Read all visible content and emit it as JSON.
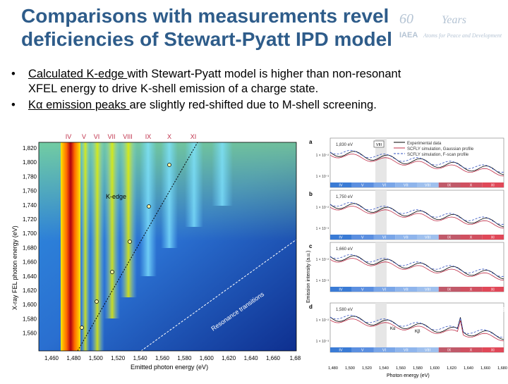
{
  "title": {
    "line1": "Comparisons with measurements revel",
    "line2": "deficiencies of Stewart-Pyatt IPD model"
  },
  "logo": {
    "sixty": "60",
    "years": "Years",
    "iaea": "IAEA",
    "sub": "Atoms for Peace and Development"
  },
  "bullets": [
    {
      "u": "Calculated K-edge ",
      "rest": "with Stewart-Pyatt model is higher than non-resonant",
      "line2": "XFEL energy to drive K-shell emission of a charge state."
    },
    {
      "u": "Kα emission peaks ",
      "rest": "are slightly red-shifted due to M-shell screening."
    }
  ],
  "left_figure": {
    "roman": [
      "IV",
      "V",
      "VI",
      "VII",
      "VIII",
      "IX",
      "X",
      "XI"
    ],
    "y_ticks": [
      "1,820",
      "1,800",
      "1,780",
      "1,760",
      "1,740",
      "1,720",
      "1,700",
      "1,680",
      "1,660",
      "1,640",
      "1,620",
      "1,600",
      "1,580",
      "1,560"
    ],
    "x_ticks": [
      "1,460",
      "1,480",
      "1,500",
      "1,520",
      "1,540",
      "1,560",
      "1,580",
      "1,600",
      "1,620",
      "1,640",
      "1,660",
      "1,68"
    ],
    "ylabel": "X-ray FEL photon energy (eV)",
    "xlabel": "Emitted photon energy (eV)",
    "kedge_label": "K-edge",
    "resonance_label": "Resonance transitions",
    "colors": {
      "hot": "#c8102e",
      "mid": "#f2e600",
      "cool": "#1f6fd6",
      "deep": "#0b2e8c"
    }
  },
  "right_figure": {
    "panels": [
      {
        "tag": "a",
        "energy": "1,830 eV",
        "box": "VIII"
      },
      {
        "tag": "b",
        "energy": "1,750 eV",
        "box": ""
      },
      {
        "tag": "c",
        "energy": "1,660 eV",
        "box": ""
      },
      {
        "tag": "d",
        "energy": "1,580 eV",
        "box": ""
      }
    ],
    "legend": [
      "Experimental data",
      "SCFLY simulation, Gaussian profile",
      "SCFLY simulation, F-scan profile"
    ],
    "ylabel": "Emission intensity (a.u.)",
    "xlabel": "Photon energy (eV)",
    "x_ticks": [
      "1,480",
      "1,500",
      "1,520",
      "1,540",
      "1,560",
      "1,580",
      "1,600",
      "1,620",
      "1,640",
      "1,660",
      "1,680"
    ],
    "bar_labels": [
      "IV",
      "V",
      "VI",
      "VII",
      "VIII",
      "IX",
      "X",
      "XI"
    ],
    "y_tick_labels": [
      "1 × 10⁻²",
      "1 × 10⁻³"
    ],
    "peak_labels": [
      "Kα",
      "Kβ"
    ]
  }
}
